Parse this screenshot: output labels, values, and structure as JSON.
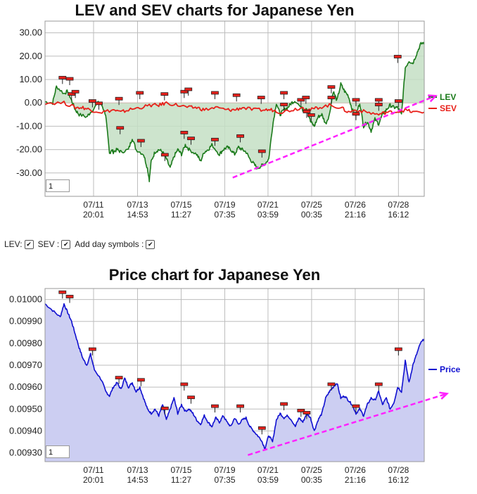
{
  "controls": {
    "lev_label": "LEV:",
    "sev_label": "SEV :",
    "day_symbols_label": "Add day symbols :",
    "lev_checked": true,
    "sev_checked": true,
    "day_symbols_checked": true
  },
  "chart_data": [
    {
      "type": "line",
      "title": "LEV and SEV charts for Japanese Yen",
      "ylim": [
        -40,
        35
      ],
      "yticks": [
        "30.00",
        "20.00",
        "10.00",
        "0.00",
        "-10.00",
        "-20.00",
        "-30.00"
      ],
      "ytick_values": [
        30,
        20,
        10,
        0,
        -10,
        -20,
        -30
      ],
      "xticks": [
        {
          "date": "07/11",
          "time": "20:01"
        },
        {
          "date": "07/13",
          "time": "14:53"
        },
        {
          "date": "07/15",
          "time": "11:27"
        },
        {
          "date": "07/19",
          "time": "07:35"
        },
        {
          "date": "07/21",
          "time": "03:59"
        },
        {
          "date": "07/25",
          "time": "00:35"
        },
        {
          "date": "07/26",
          "time": "21:16"
        },
        {
          "date": "07/28",
          "time": "16:12"
        }
      ],
      "xlim": [
        0,
        100
      ],
      "xtick_positions": [
        12.8,
        24.4,
        35.9,
        47.4,
        58.8,
        70.3,
        81.8,
        93.2
      ],
      "grid": true,
      "legend_position": "right",
      "input_value": "1",
      "series": [
        {
          "name": "LEV",
          "color": "#1a7a1a",
          "fill": "#c4dfc4",
          "x": [
            0,
            2,
            3,
            5,
            6,
            7,
            8,
            9,
            11,
            12,
            14,
            15,
            16,
            17,
            17.5,
            18,
            19,
            20,
            22,
            23,
            24,
            26,
            27,
            27.5,
            28,
            29,
            30,
            31,
            32,
            33,
            34,
            35,
            36,
            37,
            38,
            40,
            41,
            42,
            43,
            44,
            46,
            47,
            48,
            49,
            50,
            51,
            52,
            53,
            54,
            55,
            56,
            57,
            58,
            59,
            60,
            61,
            62,
            63,
            64,
            65,
            66,
            68,
            69,
            70,
            71,
            72,
            73,
            74,
            75,
            76,
            77,
            78,
            79,
            80,
            81,
            82,
            83,
            84,
            85,
            86,
            87,
            88,
            89,
            90,
            91,
            92,
            93,
            94,
            95,
            96,
            97,
            98,
            99,
            100
          ],
          "y": [
            0.5,
            0,
            7,
            4,
            5,
            1,
            -3,
            -5,
            -6,
            -4,
            0,
            -1,
            -5,
            -22,
            -20,
            -21,
            -20,
            -21,
            -20,
            -15,
            -20,
            -22,
            -28,
            -33,
            -25,
            -21,
            -20,
            -21,
            -24,
            -28,
            -23,
            -20,
            -22,
            -18,
            -20,
            -22,
            -25,
            -21,
            -20,
            -18,
            -22,
            -20,
            -19,
            -20,
            -22,
            -19,
            -20,
            -21,
            -24,
            -26,
            -28,
            -27,
            -26,
            -24,
            -10,
            0,
            -5,
            -3,
            -2,
            0,
            1,
            -3,
            -2,
            -8,
            -10,
            -6,
            -5,
            -9,
            -5,
            5,
            1,
            8,
            5,
            3,
            -3,
            -5,
            0,
            -10,
            -8,
            -12,
            -7,
            -9,
            -5,
            -3,
            -1,
            -2,
            -2,
            -5,
            15,
            18,
            17,
            21,
            25,
            26
          ],
          "day_marker_labels": []
        },
        {
          "name": "SEV",
          "color": "#e8201a",
          "x": [
            0,
            5,
            8,
            10,
            12,
            15,
            18,
            20,
            22,
            25,
            28,
            30,
            32,
            35,
            38,
            40,
            42,
            45,
            48,
            50,
            52,
            55,
            58,
            60,
            62,
            65,
            68,
            70,
            72,
            75,
            78,
            80,
            82,
            85,
            88,
            90,
            92,
            95,
            97,
            100
          ],
          "y": [
            0,
            0,
            -2,
            -2,
            -3,
            -4,
            -3,
            -4,
            -3,
            -2,
            -1,
            -1,
            0,
            -1,
            -2,
            -2,
            -3,
            -2,
            -3,
            -3,
            -2,
            -3,
            -3,
            -3,
            -4,
            -3,
            -2,
            -3,
            -2,
            -1,
            -2,
            -4,
            -3,
            -4,
            -5,
            -4,
            -4,
            -3,
            -4,
            -4
          ]
        }
      ],
      "day_markers": [
        {
          "x": 4.6,
          "y": 10.5
        },
        {
          "x": 6.5,
          "y": 10
        },
        {
          "x": 7.0,
          "y": 3.5
        },
        {
          "x": 8.0,
          "y": 4.5
        },
        {
          "x": 12.5,
          "y": 0.5
        },
        {
          "x": 14.2,
          "y": -0.5
        },
        {
          "x": 19.5,
          "y": 1.5
        },
        {
          "x": 19.8,
          "y": -11
        },
        {
          "x": 25.0,
          "y": 4
        },
        {
          "x": 25.3,
          "y": -16.5
        },
        {
          "x": 31.5,
          "y": 3.5
        },
        {
          "x": 31.6,
          "y": -22.5
        },
        {
          "x": 36.7,
          "y": 4.5
        },
        {
          "x": 36.7,
          "y": -13
        },
        {
          "x": 37.8,
          "y": 5.5
        },
        {
          "x": 38.5,
          "y": -15.5
        },
        {
          "x": 44.8,
          "y": 4
        },
        {
          "x": 44.8,
          "y": -16
        },
        {
          "x": 50.5,
          "y": 3
        },
        {
          "x": 51.5,
          "y": -14.5
        },
        {
          "x": 57.0,
          "y": 2
        },
        {
          "x": 57.2,
          "y": -21
        },
        {
          "x": 63.0,
          "y": 4
        },
        {
          "x": 63.0,
          "y": -1
        },
        {
          "x": 67.5,
          "y": 1
        },
        {
          "x": 68.8,
          "y": 2
        },
        {
          "x": 69.0,
          "y": -4
        },
        {
          "x": 70.2,
          "y": -5.5
        },
        {
          "x": 75.5,
          "y": 6.5
        },
        {
          "x": 75.5,
          "y": 2
        },
        {
          "x": 82.0,
          "y": 1
        },
        {
          "x": 82.0,
          "y": -5
        },
        {
          "x": 88.0,
          "y": 1
        },
        {
          "x": 88.0,
          "y": -1
        },
        {
          "x": 93.0,
          "y": 19.5
        },
        {
          "x": 93.2,
          "y": 0.5
        }
      ],
      "trend_arrow": {
        "x1": 49.5,
        "y1": -32,
        "x2": 103,
        "y2": 3,
        "color": "#ff22ff"
      }
    },
    {
      "type": "area",
      "title": "Price chart for Japanese Yen",
      "ylim": [
        0.00926,
        0.01005
      ],
      "yticks": [
        "0.01000",
        "0.00990",
        "0.00980",
        "0.00970",
        "0.00960",
        "0.00950",
        "0.00940",
        "0.00930"
      ],
      "ytick_values": [
        0.01,
        0.0099,
        0.0098,
        0.0097,
        0.0096,
        0.0095,
        0.0094,
        0.0093
      ],
      "xticks": [
        {
          "date": "07/11",
          "time": "20:01"
        },
        {
          "date": "07/13",
          "time": "14:53"
        },
        {
          "date": "07/15",
          "time": "11:27"
        },
        {
          "date": "07/19",
          "time": "07:35"
        },
        {
          "date": "07/21",
          "time": "03:59"
        },
        {
          "date": "07/25",
          "time": "00:35"
        },
        {
          "date": "07/26",
          "time": "21:16"
        },
        {
          "date": "07/28",
          "time": "16:12"
        }
      ],
      "xlim": [
        0,
        100
      ],
      "xtick_positions": [
        12.8,
        24.4,
        35.9,
        47.4,
        58.8,
        70.3,
        81.8,
        93.2
      ],
      "grid": true,
      "legend_position": "right",
      "input_value": "1",
      "series": [
        {
          "name": "Price",
          "color": "#1010d0",
          "fill": "#cccef2",
          "x": [
            0,
            2,
            4,
            5,
            6,
            7,
            8,
            9,
            10,
            11,
            12,
            13,
            15,
            16,
            17,
            18,
            19,
            20,
            21,
            22,
            23,
            24,
            25,
            26,
            27,
            28,
            29,
            30,
            31,
            32,
            33,
            34,
            35,
            36,
            37,
            38,
            39,
            40,
            41,
            42,
            43,
            44,
            45,
            46,
            47,
            48,
            49,
            50,
            51,
            52,
            53,
            54,
            55,
            56,
            57,
            58,
            59,
            60,
            61,
            62,
            63,
            64,
            65,
            66,
            67,
            68,
            69,
            70,
            71,
            72,
            73,
            74,
            75,
            76,
            77,
            78,
            79,
            80,
            81,
            82,
            83,
            84,
            85,
            86,
            87,
            88,
            89,
            90,
            91,
            92,
            93,
            94,
            95,
            96,
            97,
            98,
            99,
            100
          ],
          "y": [
            0.00998,
            0.00995,
            0.00992,
            0.00998,
            0.00994,
            0.0099,
            0.00984,
            0.00978,
            0.00973,
            0.0097,
            0.00975,
            0.00968,
            0.00963,
            0.00958,
            0.00956,
            0.0096,
            0.00962,
            0.00959,
            0.00964,
            0.0096,
            0.00962,
            0.00958,
            0.0096,
            0.00955,
            0.0095,
            0.00948,
            0.0095,
            0.00947,
            0.00952,
            0.00945,
            0.0095,
            0.00955,
            0.00948,
            0.00952,
            0.00949,
            0.0095,
            0.00948,
            0.00945,
            0.00943,
            0.00947,
            0.00944,
            0.00942,
            0.00946,
            0.00944,
            0.00947,
            0.00944,
            0.00942,
            0.00946,
            0.00943,
            0.00945,
            0.00946,
            0.00942,
            0.0094,
            0.00938,
            0.00936,
            0.00932,
            0.00938,
            0.00935,
            0.00945,
            0.00948,
            0.00946,
            0.00947,
            0.00945,
            0.00942,
            0.00946,
            0.00944,
            0.00948,
            0.00946,
            0.0094,
            0.00945,
            0.00948,
            0.00955,
            0.00958,
            0.0096,
            0.00962,
            0.00955,
            0.00956,
            0.00954,
            0.00952,
            0.00948,
            0.0095,
            0.00947,
            0.00952,
            0.00955,
            0.00954,
            0.00958,
            0.00952,
            0.00955,
            0.0095,
            0.00953,
            0.0096,
            0.00958,
            0.00972,
            0.00962,
            0.0097,
            0.00975,
            0.0098,
            0.00982
          ]
        }
      ],
      "day_markers": [
        {
          "x": 4.6,
          "y": 0.01003
        },
        {
          "x": 6.5,
          "y": 0.01001
        },
        {
          "x": 12.5,
          "y": 0.00977
        },
        {
          "x": 19.5,
          "y": 0.00964
        },
        {
          "x": 25.3,
          "y": 0.00963
        },
        {
          "x": 31.6,
          "y": 0.0095
        },
        {
          "x": 36.7,
          "y": 0.00961
        },
        {
          "x": 38.5,
          "y": 0.00955
        },
        {
          "x": 44.8,
          "y": 0.00951
        },
        {
          "x": 51.5,
          "y": 0.00951
        },
        {
          "x": 57.2,
          "y": 0.00941
        },
        {
          "x": 63.0,
          "y": 0.00952
        },
        {
          "x": 67.5,
          "y": 0.00949
        },
        {
          "x": 69.0,
          "y": 0.00948
        },
        {
          "x": 75.5,
          "y": 0.00961
        },
        {
          "x": 82.0,
          "y": 0.00951
        },
        {
          "x": 88.0,
          "y": 0.00961
        },
        {
          "x": 93.2,
          "y": 0.00977
        }
      ],
      "trend_arrow": {
        "x1": 53.5,
        "y1": 0.00929,
        "x2": 106,
        "y2": 0.00957,
        "color": "#ff22ff"
      }
    }
  ]
}
